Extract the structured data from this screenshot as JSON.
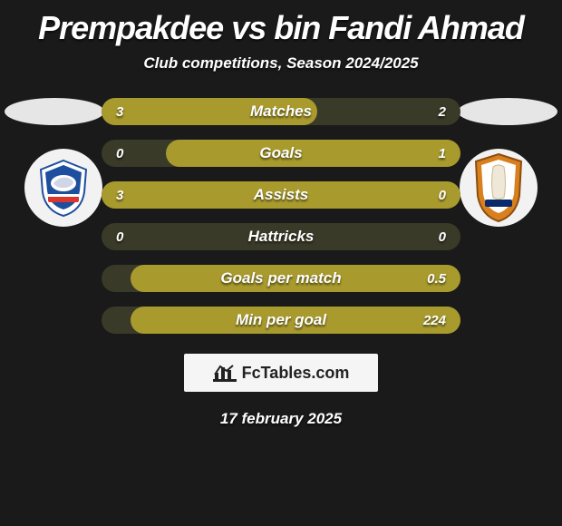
{
  "title": "Prempakdee vs bin Fandi Ahmad",
  "subtitle": "Club competitions, Season 2024/2025",
  "date": "17 february 2025",
  "watermark": "FcTables.com",
  "colors": {
    "background": "#1a1a1a",
    "bar_outer": "#3a3a28",
    "bar_fill": "#a89a2d",
    "oval": "#e6e6e6",
    "circle": "#f2f2f2",
    "watermark_bg": "#f5f5f5"
  },
  "left_badge": {
    "name": "left-club-badge",
    "primary": "#1e4f9e",
    "secondary": "#d9362e",
    "accent": "#ffffff"
  },
  "right_badge": {
    "name": "right-club-badge",
    "primary": "#d97f1e",
    "secondary": "#ffffff",
    "accent": "#0a2a6b"
  },
  "rows": [
    {
      "label": "Matches",
      "left": "3",
      "right": "2",
      "fill_left_pct": 0,
      "fill_width_pct": 60
    },
    {
      "label": "Goals",
      "left": "0",
      "right": "1",
      "fill_left_pct": 18,
      "fill_width_pct": 82
    },
    {
      "label": "Assists",
      "left": "3",
      "right": "0",
      "fill_left_pct": 0,
      "fill_width_pct": 100
    },
    {
      "label": "Hattricks",
      "left": "0",
      "right": "0",
      "fill_left_pct": 0,
      "fill_width_pct": 0
    },
    {
      "label": "Goals per match",
      "left": "",
      "right": "0.5",
      "fill_left_pct": 8,
      "fill_width_pct": 92
    },
    {
      "label": "Min per goal",
      "left": "",
      "right": "224",
      "fill_left_pct": 8,
      "fill_width_pct": 92
    }
  ]
}
